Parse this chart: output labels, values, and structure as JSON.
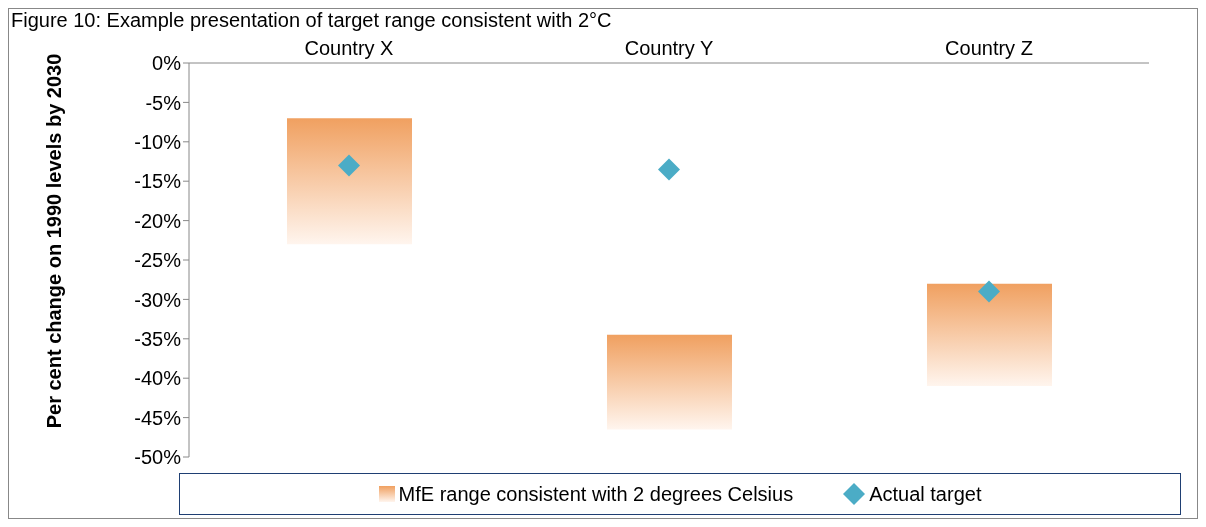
{
  "chart_data": {
    "type": "bar",
    "title": "Figure 10: Example presentation of target range consistent with 2°C",
    "ylabel": "Per cent change on 1990 levels by 2030",
    "categories": [
      "Country X",
      "Country Y",
      "Country Z"
    ],
    "series": [
      {
        "name": "MfE range consistent with 2 degrees Celsius",
        "color": "#f0a060",
        "base": [
          -23,
          -46.5,
          -41
        ],
        "values": [
          16,
          12,
          13
        ]
      },
      {
        "name": "Actual target",
        "type": "scatter",
        "color": "#4bacc6",
        "marker": "diamond",
        "values": [
          -13,
          -13.5,
          -29
        ]
      }
    ],
    "ylim": [
      -50,
      0
    ],
    "yticks": [
      {
        "value": 0,
        "label": "0%"
      },
      {
        "value": -5,
        "label": "-5%"
      },
      {
        "value": -10,
        "label": "-10%"
      },
      {
        "value": -15,
        "label": "-15%"
      },
      {
        "value": -20,
        "label": "-20%"
      },
      {
        "value": -25,
        "label": "-25%"
      },
      {
        "value": -30,
        "label": "-30%"
      },
      {
        "value": -35,
        "label": "-35%"
      },
      {
        "value": -40,
        "label": "-40%"
      },
      {
        "value": -45,
        "label": "-45%"
      },
      {
        "value": -50,
        "label": "-50%"
      }
    ],
    "grid": false,
    "legend": "bottom"
  }
}
